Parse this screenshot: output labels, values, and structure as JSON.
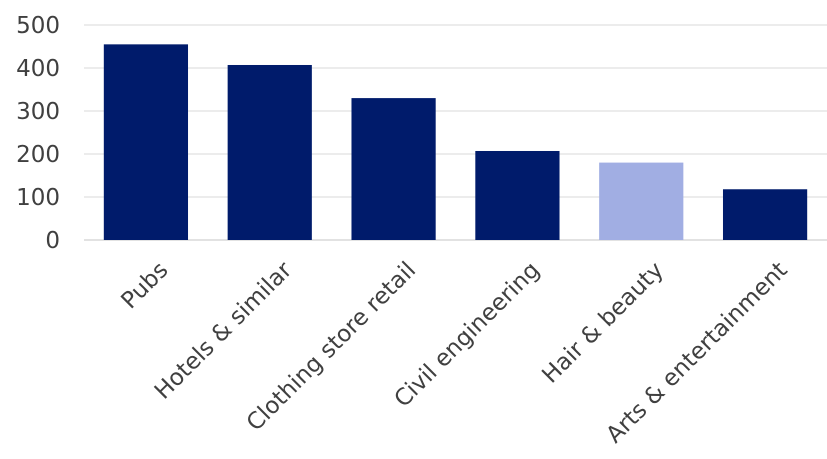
{
  "chart_data": {
    "type": "bar",
    "title": "",
    "xlabel": "",
    "ylabel": "",
    "categories": [
      "Pubs",
      "Hotels & similar",
      "Clothing store retail",
      "Civil engineering",
      "Hair & beauty",
      "Arts & entertainment"
    ],
    "values": [
      455,
      407,
      330,
      207,
      180,
      118
    ],
    "ylim": [
      0,
      500
    ],
    "yticks": [
      0,
      100,
      200,
      300,
      400,
      500
    ],
    "ytick_labels": [
      "0",
      "100",
      "200",
      "300",
      "400",
      "500"
    ],
    "grid": true,
    "legend": "none",
    "bar_color": "#001b6b",
    "highlight_color": "#a1aee3",
    "highlight_category": "Hair & beauty"
  }
}
